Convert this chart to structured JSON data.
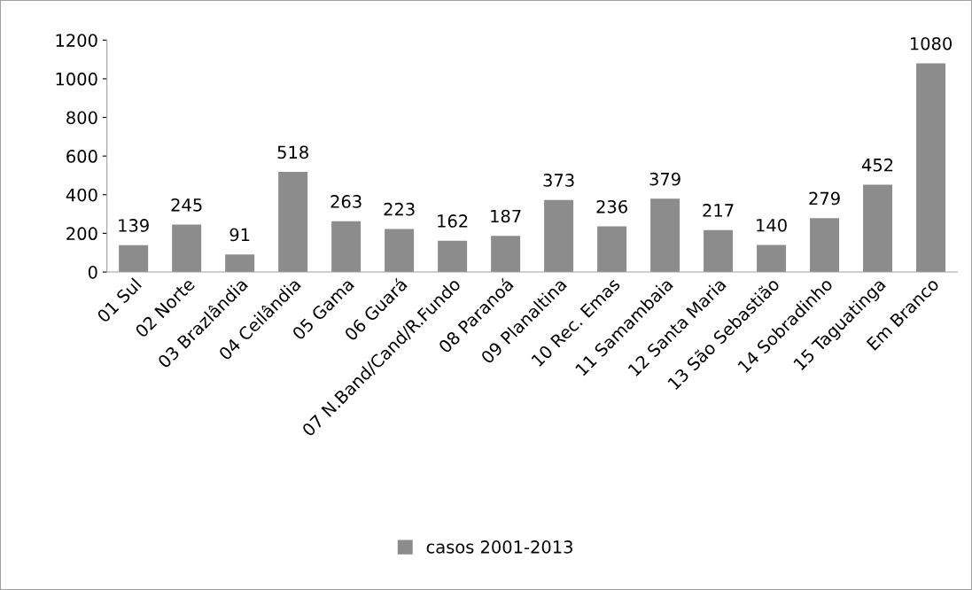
{
  "chart_data": {
    "type": "bar",
    "categories": [
      "01 Sul",
      "02 Norte",
      "03 Brazlândia",
      "04 Ceilândia",
      "05 Gama",
      "06 Guará",
      "07 N.Band/Cand/R.Fundo",
      "08 Paranoá",
      "09 Planaltina",
      "10 Rec. Emas",
      "11 Samambaia",
      "12 Santa Maria",
      "13 São Sebastião",
      "14 Sobradinho",
      "15 Taguatinga",
      "Em Branco"
    ],
    "series": [
      {
        "name": "casos 2001-2013",
        "color": "#8c8c8c",
        "values": [
          139,
          245,
          91,
          518,
          263,
          223,
          162,
          187,
          373,
          236,
          379,
          217,
          140,
          279,
          452,
          1080
        ]
      }
    ],
    "ylim": [
      0,
      1200
    ],
    "yticks": [
      0,
      200,
      400,
      600,
      800,
      1000,
      1200
    ],
    "data_labels": true,
    "grid": false,
    "legend": "bottom"
  }
}
